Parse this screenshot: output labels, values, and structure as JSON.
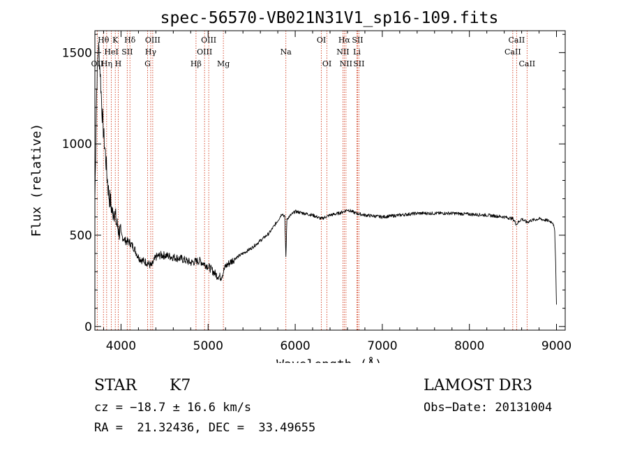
{
  "chart_data": {
    "type": "line",
    "title": "spec-56570-VB021N31V1_sp16-109.fits",
    "xlabel": "Wavelength (Å)",
    "ylabel": "Flux (relative)",
    "xlim": [
      3700,
      9100
    ],
    "ylim": [
      -20,
      1620
    ],
    "x_ticks": [
      4000,
      5000,
      6000,
      7000,
      8000,
      9000
    ],
    "y_ticks": [
      0,
      500,
      1000,
      1500
    ],
    "y_tick_labels": [
      "0",
      "500",
      "1000",
      "1500"
    ],
    "series": [
      {
        "name": "spectrum",
        "x": [
          3700,
          3720,
          3740,
          3760,
          3780,
          3800,
          3820,
          3840,
          3860,
          3880,
          3900,
          3920,
          3950,
          3980,
          4000,
          4050,
          4100,
          4150,
          4200,
          4250,
          4300,
          4350,
          4400,
          4450,
          4500,
          4600,
          4700,
          4800,
          4900,
          5000,
          5100,
          5150,
          5200,
          5300,
          5400,
          5500,
          5600,
          5700,
          5800,
          5850,
          5880,
          5893,
          5905,
          5950,
          6000,
          6100,
          6200,
          6300,
          6400,
          6500,
          6560,
          6600,
          6700,
          6800,
          7000,
          7200,
          7400,
          7600,
          7800,
          8000,
          8200,
          8400,
          8500,
          8540,
          8600,
          8660,
          8700,
          8800,
          8900,
          8960,
          8980,
          8990,
          9000
        ],
        "y": [
          700,
          1300,
          1550,
          1400,
          1200,
          1050,
          950,
          820,
          720,
          680,
          620,
          640,
          560,
          520,
          500,
          470,
          460,
          430,
          380,
          360,
          350,
          330,
          380,
          390,
          390,
          380,
          370,
          350,
          360,
          330,
          280,
          270,
          330,
          370,
          400,
          430,
          470,
          510,
          580,
          620,
          600,
          380,
          590,
          610,
          630,
          620,
          610,
          590,
          610,
          620,
          630,
          640,
          620,
          610,
          600,
          610,
          620,
          620,
          620,
          615,
          610,
          600,
          590,
          560,
          590,
          570,
          580,
          590,
          580,
          570,
          520,
          350,
          120
        ]
      }
    ],
    "lines": [
      {
        "label": "Hθ",
        "x": 3798,
        "row": 1
      },
      {
        "label": "OII",
        "x": 3727,
        "row": 3
      },
      {
        "label": "Hη",
        "x": 3835,
        "row": 3
      },
      {
        "label": "HeI",
        "x": 3889,
        "row": 2
      },
      {
        "label": "K",
        "x": 3934,
        "row": 1
      },
      {
        "label": "H",
        "x": 3968,
        "row": 3
      },
      {
        "label": "SII",
        "x": 4071,
        "row": 2
      },
      {
        "label": "Hδ",
        "x": 4102,
        "row": 1
      },
      {
        "label": "G",
        "x": 4305,
        "row": 3
      },
      {
        "label": "OIII",
        "x": 4364,
        "row": 1
      },
      {
        "label": "Hγ",
        "x": 4341,
        "row": 2
      },
      {
        "label": "Hβ",
        "x": 4861,
        "row": 3
      },
      {
        "label": "OIII",
        "x": 4959,
        "row": 2
      },
      {
        "label": "OIII",
        "x": 5007,
        "row": 1
      },
      {
        "label": "Mg",
        "x": 5175,
        "row": 3
      },
      {
        "label": "Na",
        "x": 5893,
        "row": 2
      },
      {
        "label": "OI",
        "x": 6300,
        "row": 1
      },
      {
        "label": "OI",
        "x": 6364,
        "row": 3
      },
      {
        "label": "NII",
        "x": 6548,
        "row": 2
      },
      {
        "label": "Hα",
        "x": 6563,
        "row": 1
      },
      {
        "label": "NII",
        "x": 6583,
        "row": 3
      },
      {
        "label": "SII",
        "x": 6716,
        "row": 1
      },
      {
        "label": "Li",
        "x": 6708,
        "row": 2
      },
      {
        "label": "SII",
        "x": 6731,
        "row": 3
      },
      {
        "label": "CaII",
        "x": 8498,
        "row": 2
      },
      {
        "label": "CaII",
        "x": 8542,
        "row": 1
      },
      {
        "label": "CaII",
        "x": 8662,
        "row": 3
      }
    ]
  },
  "info": {
    "class_label": "STAR",
    "subclass_label": "K7",
    "survey": "LAMOST DR3",
    "redshift": "cz = −18.7 ± 16.6 km/s",
    "obs_date": "Obs−Date: 20131004",
    "coords": "RA =  21.32436, DEC =  33.49655"
  },
  "colors": {
    "spectrum": "#000000",
    "line_marker": "#cc2200",
    "axes": "#000000"
  }
}
